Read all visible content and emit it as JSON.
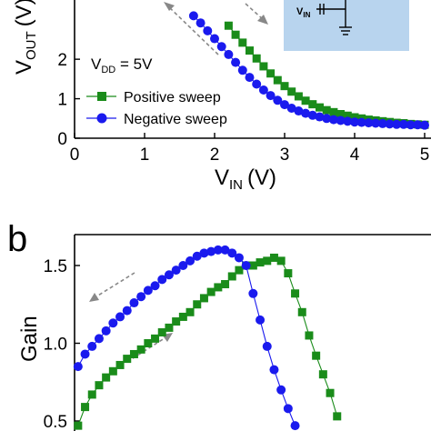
{
  "chart_data": [
    {
      "type": "line",
      "panel_label": "",
      "xlabel": "V",
      "xlabel_sub": "IN",
      "xlabel_unit": "(V)",
      "ylabel": "V",
      "ylabel_sub": "OUT",
      "ylabel_unit": "(V)",
      "xlim": [
        0,
        5
      ],
      "ylim": [
        0,
        3.5
      ],
      "x_ticks": [
        "0",
        "1",
        "2",
        "3",
        "4",
        "5"
      ],
      "y_ticks": [
        "0",
        "1",
        "2"
      ],
      "annotation": {
        "text": "V",
        "sub": "DD",
        "rest": " = 5V"
      },
      "inset_label": {
        "text": "V",
        "sub": "IN"
      },
      "legend_placement": "bottom-left",
      "series": [
        {
          "name": "Positive sweep",
          "color": "#1a8c1a",
          "marker": "square",
          "x": [
            2.2,
            2.3,
            2.4,
            2.5,
            2.6,
            2.7,
            2.8,
            2.9,
            3.0,
            3.1,
            3.2,
            3.3,
            3.4,
            3.5,
            3.6,
            3.7,
            3.8,
            3.9,
            4.0,
            4.1,
            4.2,
            4.3,
            4.4,
            4.5,
            4.6,
            4.7,
            4.8,
            4.9,
            5.0
          ],
          "y": [
            2.85,
            2.62,
            2.42,
            2.22,
            2.02,
            1.82,
            1.64,
            1.47,
            1.32,
            1.18,
            1.06,
            0.95,
            0.86,
            0.78,
            0.71,
            0.66,
            0.61,
            0.57,
            0.53,
            0.5,
            0.47,
            0.45,
            0.43,
            0.41,
            0.39,
            0.38,
            0.36,
            0.35,
            0.34
          ]
        },
        {
          "name": "Negative sweep",
          "color": "#1a1aee",
          "marker": "circle",
          "x": [
            1.7,
            1.8,
            1.9,
            2.0,
            2.1,
            2.2,
            2.3,
            2.4,
            2.5,
            2.6,
            2.7,
            2.8,
            2.9,
            3.0,
            3.1,
            3.2,
            3.3,
            3.4,
            3.5,
            3.6,
            3.7,
            3.8,
            3.9,
            4.0,
            4.1,
            4.2,
            4.3,
            4.4,
            4.5,
            4.6,
            4.7,
            4.8,
            4.9,
            5.0
          ],
          "y": [
            3.1,
            2.92,
            2.72,
            2.52,
            2.32,
            2.12,
            1.92,
            1.72,
            1.54,
            1.37,
            1.22,
            1.08,
            0.96,
            0.85,
            0.76,
            0.69,
            0.63,
            0.58,
            0.54,
            0.5,
            0.47,
            0.45,
            0.43,
            0.41,
            0.4,
            0.39,
            0.38,
            0.37,
            0.36,
            0.35,
            0.35,
            0.34,
            0.34,
            0.33
          ]
        }
      ]
    },
    {
      "type": "line",
      "panel_label": "b",
      "xlabel": "",
      "ylabel": "Gain",
      "ylim": [
        0.4,
        1.7
      ],
      "y_ticks": [
        "0.5",
        "1.0",
        "1.5"
      ],
      "series": [
        {
          "name": "Positive sweep",
          "color": "#1a8c1a",
          "marker": "square",
          "x": [
            0.05,
            0.15,
            0.25,
            0.35,
            0.45,
            0.55,
            0.65,
            0.75,
            0.85,
            0.95,
            1.05,
            1.15,
            1.25,
            1.35,
            1.45,
            1.55,
            1.65,
            1.75,
            1.85,
            1.95,
            2.05,
            2.15,
            2.25,
            2.35,
            2.45,
            2.55,
            2.65,
            2.75,
            2.85,
            2.95,
            3.05,
            3.15,
            3.25,
            3.35,
            3.45,
            3.55,
            3.65,
            3.75
          ],
          "y": [
            0.47,
            0.59,
            0.67,
            0.73,
            0.78,
            0.82,
            0.86,
            0.9,
            0.93,
            0.96,
            1.0,
            1.03,
            1.07,
            1.1,
            1.14,
            1.17,
            1.2,
            1.25,
            1.29,
            1.33,
            1.36,
            1.38,
            1.43,
            1.47,
            1.5,
            1.5,
            1.52,
            1.53,
            1.55,
            1.53,
            1.45,
            1.32,
            1.2,
            1.05,
            0.92,
            0.8,
            0.68,
            0.53
          ]
        },
        {
          "name": "Negative sweep",
          "color": "#1a1aee",
          "marker": "circle",
          "x": [
            0.05,
            0.15,
            0.25,
            0.35,
            0.45,
            0.55,
            0.65,
            0.75,
            0.85,
            0.95,
            1.05,
            1.15,
            1.25,
            1.35,
            1.45,
            1.55,
            1.65,
            1.75,
            1.85,
            1.95,
            2.05,
            2.15,
            2.25,
            2.35,
            2.45,
            2.55,
            2.65,
            2.75,
            2.85,
            2.95,
            3.05,
            3.15
          ],
          "y": [
            0.85,
            0.93,
            0.98,
            1.03,
            1.08,
            1.13,
            1.17,
            1.21,
            1.26,
            1.3,
            1.34,
            1.37,
            1.41,
            1.44,
            1.47,
            1.5,
            1.53,
            1.56,
            1.58,
            1.59,
            1.6,
            1.6,
            1.58,
            1.55,
            1.5,
            1.32,
            1.15,
            0.98,
            0.83,
            0.7,
            0.58,
            0.47
          ]
        }
      ]
    }
  ]
}
